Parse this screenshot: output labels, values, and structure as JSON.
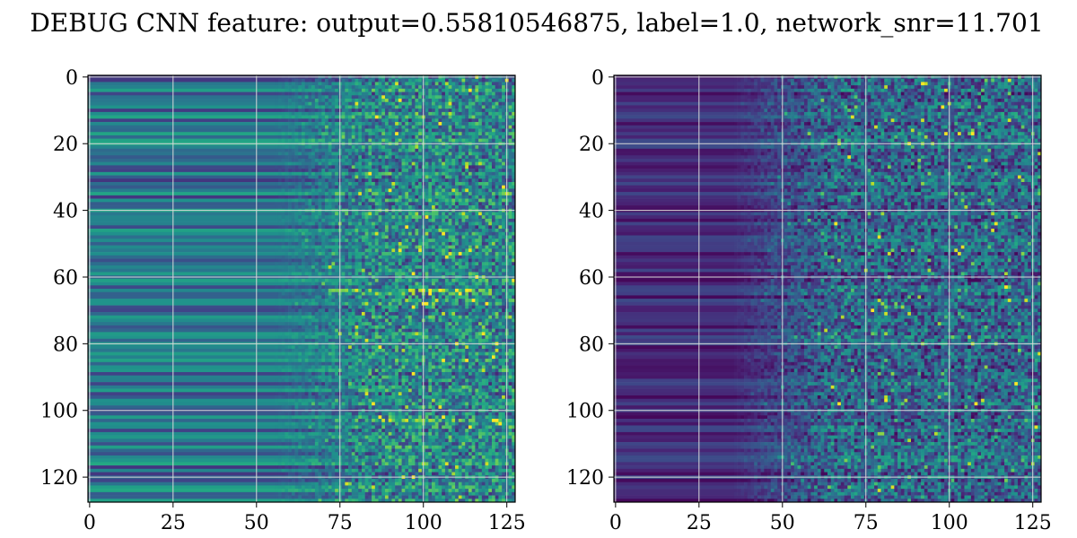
{
  "figure": {
    "title": "DEBUG CNN feature: output=0.55810546875, label=1.0, network_snr=11.701"
  },
  "chart_data": [
    {
      "type": "heatmap",
      "colormap": "viridis",
      "rows": 128,
      "cols": 128,
      "xlim": [
        0,
        127
      ],
      "ylim": [
        127,
        0
      ],
      "x_ticks": [
        "0",
        "25",
        "50",
        "75",
        "100",
        "125"
      ],
      "y_ticks": [
        "0",
        "20",
        "40",
        "60",
        "80",
        "100",
        "120"
      ],
      "grid": true,
      "structure": "left region (cols 0-~70) horizontal banding of teal/green rows; right region (cols ~70-127) noisy speckle with bright yellow-green pixels, bright streaks near rows 64-66 and 103",
      "intensity_profile": {
        "left_band_level": 0.38,
        "right_noise_level": 0.45,
        "transition_col": 70
      }
    },
    {
      "type": "heatmap",
      "colormap": "viridis",
      "rows": 128,
      "cols": 128,
      "xlim": [
        0,
        127
      ],
      "ylim": [
        127,
        0
      ],
      "x_ticks": [
        "0",
        "25",
        "50",
        "75",
        "100",
        "125"
      ],
      "y_ticks": [
        "0",
        "20",
        "40",
        "60",
        "80",
        "100",
        "120"
      ],
      "grid": true,
      "structure": "mostly dark purple with faint horizontal banding on left (cols 0-~50), increasingly bright speckle noise toward right (cols ~50-127), bright points near col 80",
      "intensity_profile": {
        "left_band_level": 0.12,
        "right_noise_level": 0.32,
        "transition_col": 50
      }
    }
  ]
}
